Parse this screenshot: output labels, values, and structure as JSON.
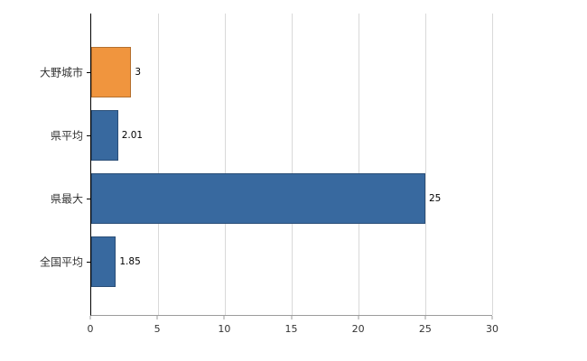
{
  "chart_data": {
    "type": "bar",
    "orientation": "horizontal",
    "title": "",
    "xlabel": "",
    "ylabel": "",
    "categories": [
      "大野城市",
      "県平均",
      "県最大",
      "全国平均"
    ],
    "values": [
      3,
      2.01,
      25,
      1.85
    ],
    "value_labels": [
      "3",
      "2.01",
      "25",
      "1.85"
    ],
    "bar_colors": [
      "#f0953e",
      "#38699f",
      "#38699f",
      "#38699f"
    ],
    "xlim": [
      0,
      30
    ],
    "x_ticks": [
      0,
      5,
      10,
      15,
      20,
      25,
      30
    ],
    "x_tick_labels": [
      "0",
      "5",
      "10",
      "15",
      "20",
      "25",
      "30"
    ],
    "grid": true,
    "legend": "none"
  },
  "colors": {
    "background": "#ffffff",
    "gridline": "#d9d9d9",
    "y_axis": "#000000",
    "x_axis": "#9b9b9b",
    "text": "#333333"
  }
}
